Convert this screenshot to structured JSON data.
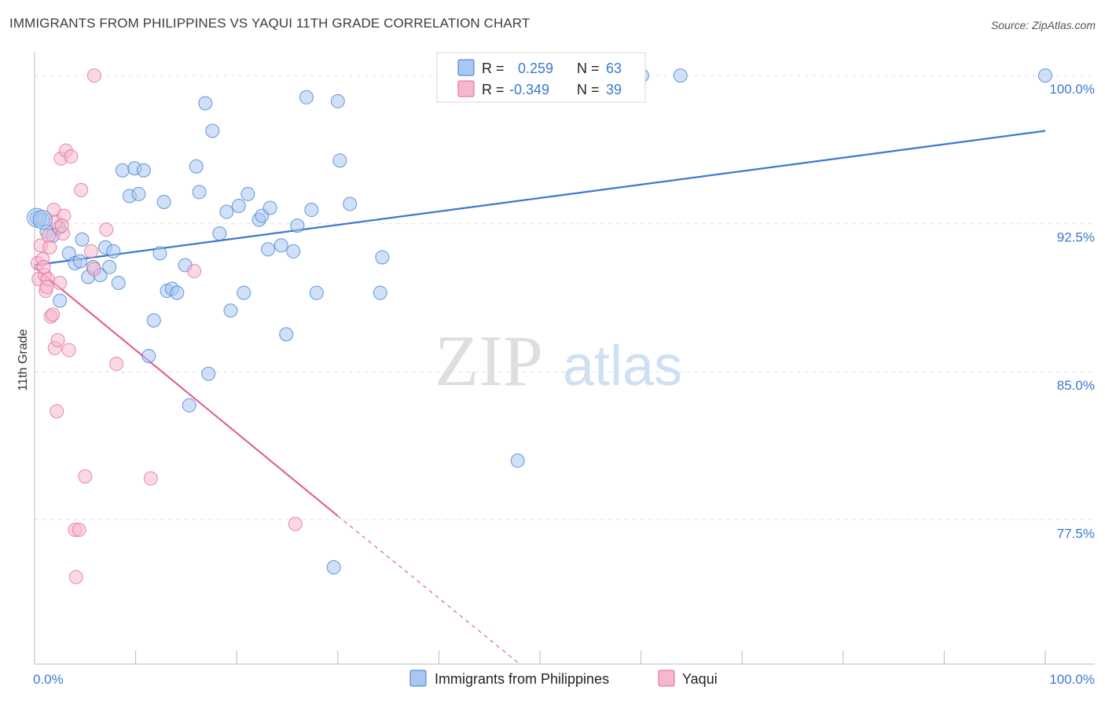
{
  "title": "IMMIGRANTS FROM PHILIPPINES VS YAQUI 11TH GRADE CORRELATION CHART",
  "source": "Source: ZipAtlas.com",
  "watermark": {
    "zip": "ZIP",
    "atlas": "atlas"
  },
  "colors": {
    "blue": "#3b78d1",
    "blue_fill": "#a9c7f0",
    "pink": "#e06592",
    "pink_fill": "#f5b8cd",
    "grid": "#e2e2e2"
  },
  "legend_top": {
    "rows": [
      {
        "r_label": "R =",
        "r_value": "0.259",
        "n_label": "N =",
        "n_value": "63"
      },
      {
        "r_label": "R =",
        "r_value": "-0.349",
        "n_label": "N =",
        "n_value": "39"
      }
    ]
  },
  "legend_bottom": [
    "Immigrants from Philippines",
    "Yaqui"
  ],
  "chart_data": {
    "type": "scatter",
    "title": "IMMIGRANTS FROM PHILIPPINES VS YAQUI 11TH GRADE CORRELATION CHART",
    "xlabel": "",
    "ylabel": "11th Grade",
    "xlim": [
      0,
      100
    ],
    "ylim": [
      70.2,
      101.2
    ],
    "x_tick_labels": [
      "0.0%",
      "100.0%"
    ],
    "y_ticks": [
      77.5,
      85.0,
      92.5,
      100.0
    ],
    "y_tick_labels": [
      "77.5%",
      "85.0%",
      "92.5%",
      "100.0%"
    ],
    "grid": true,
    "legend_position": "top-center",
    "series": [
      {
        "name": "Immigrants from Philippines",
        "color": "#3b78d1",
        "trend": {
          "x": [
            0,
            100
          ],
          "y": [
            90.4,
            97.2
          ]
        },
        "points": [
          {
            "x": 0.2,
            "y": 92.8
          },
          {
            "x": 0.8,
            "y": 92.7
          },
          {
            "x": 1.2,
            "y": 92.1
          },
          {
            "x": 1.8,
            "y": 91.9
          },
          {
            "x": 2.4,
            "y": 92.3
          },
          {
            "x": 2.5,
            "y": 88.6
          },
          {
            "x": 3.4,
            "y": 91.0
          },
          {
            "x": 4.0,
            "y": 90.5
          },
          {
            "x": 4.5,
            "y": 90.6
          },
          {
            "x": 4.7,
            "y": 91.7
          },
          {
            "x": 5.3,
            "y": 89.8
          },
          {
            "x": 5.8,
            "y": 90.3
          },
          {
            "x": 6.5,
            "y": 89.9
          },
          {
            "x": 7.0,
            "y": 91.3
          },
          {
            "x": 7.4,
            "y": 90.3
          },
          {
            "x": 7.8,
            "y": 91.1
          },
          {
            "x": 8.3,
            "y": 89.5
          },
          {
            "x": 8.7,
            "y": 95.2
          },
          {
            "x": 9.4,
            "y": 93.9
          },
          {
            "x": 9.9,
            "y": 95.3
          },
          {
            "x": 10.3,
            "y": 94.0
          },
          {
            "x": 10.8,
            "y": 95.2
          },
          {
            "x": 11.3,
            "y": 85.8
          },
          {
            "x": 11.8,
            "y": 87.6
          },
          {
            "x": 12.4,
            "y": 91.0
          },
          {
            "x": 12.8,
            "y": 93.6
          },
          {
            "x": 13.1,
            "y": 89.1
          },
          {
            "x": 13.6,
            "y": 89.2
          },
          {
            "x": 14.1,
            "y": 89.0
          },
          {
            "x": 14.9,
            "y": 90.4
          },
          {
            "x": 15.3,
            "y": 83.3
          },
          {
            "x": 16.0,
            "y": 95.4
          },
          {
            "x": 16.3,
            "y": 94.1
          },
          {
            "x": 16.9,
            "y": 98.6
          },
          {
            "x": 17.2,
            "y": 84.9
          },
          {
            "x": 17.6,
            "y": 97.2
          },
          {
            "x": 18.3,
            "y": 92.0
          },
          {
            "x": 19.0,
            "y": 93.1
          },
          {
            "x": 19.4,
            "y": 88.1
          },
          {
            "x": 20.2,
            "y": 93.4
          },
          {
            "x": 20.7,
            "y": 89.0
          },
          {
            "x": 21.1,
            "y": 94.0
          },
          {
            "x": 22.2,
            "y": 92.7
          },
          {
            "x": 22.5,
            "y": 92.9
          },
          {
            "x": 23.1,
            "y": 91.2
          },
          {
            "x": 23.3,
            "y": 93.3
          },
          {
            "x": 24.4,
            "y": 91.4
          },
          {
            "x": 24.9,
            "y": 86.9
          },
          {
            "x": 25.6,
            "y": 91.1
          },
          {
            "x": 26.0,
            "y": 92.4
          },
          {
            "x": 26.9,
            "y": 98.9
          },
          {
            "x": 27.4,
            "y": 93.2
          },
          {
            "x": 27.9,
            "y": 89.0
          },
          {
            "x": 29.6,
            "y": 75.1
          },
          {
            "x": 30.0,
            "y": 98.7
          },
          {
            "x": 30.2,
            "y": 95.7
          },
          {
            "x": 31.2,
            "y": 93.5
          },
          {
            "x": 34.2,
            "y": 89.0
          },
          {
            "x": 34.4,
            "y": 90.8
          },
          {
            "x": 47.8,
            "y": 80.5
          },
          {
            "x": 60.1,
            "y": 100.0
          },
          {
            "x": 63.9,
            "y": 100.0
          },
          {
            "x": 100.0,
            "y": 100.0
          }
        ]
      },
      {
        "name": "Yaqui",
        "color": "#e06592",
        "trend": {
          "x": [
            0,
            30
          ],
          "y": [
            90.3,
            77.7
          ]
        },
        "trend_dashed": {
          "x": [
            30,
            48
          ],
          "y": [
            77.7,
            70.2
          ]
        },
        "points": [
          {
            "x": 0.3,
            "y": 90.5
          },
          {
            "x": 0.4,
            "y": 89.7
          },
          {
            "x": 0.6,
            "y": 91.4
          },
          {
            "x": 0.8,
            "y": 90.7
          },
          {
            "x": 1.0,
            "y": 89.9
          },
          {
            "x": 1.1,
            "y": 89.1
          },
          {
            "x": 1.3,
            "y": 89.7
          },
          {
            "x": 1.4,
            "y": 91.9
          },
          {
            "x": 1.5,
            "y": 91.3
          },
          {
            "x": 1.6,
            "y": 87.8
          },
          {
            "x": 1.8,
            "y": 87.9
          },
          {
            "x": 1.9,
            "y": 93.2
          },
          {
            "x": 2.0,
            "y": 86.2
          },
          {
            "x": 2.1,
            "y": 92.6
          },
          {
            "x": 2.2,
            "y": 83.0
          },
          {
            "x": 2.3,
            "y": 86.6
          },
          {
            "x": 2.5,
            "y": 89.5
          },
          {
            "x": 2.6,
            "y": 95.8
          },
          {
            "x": 2.8,
            "y": 92.0
          },
          {
            "x": 2.9,
            "y": 92.9
          },
          {
            "x": 3.1,
            "y": 96.2
          },
          {
            "x": 3.4,
            "y": 86.1
          },
          {
            "x": 3.6,
            "y": 95.9
          },
          {
            "x": 4.0,
            "y": 77.0
          },
          {
            "x": 4.1,
            "y": 74.6
          },
          {
            "x": 4.4,
            "y": 77.0
          },
          {
            "x": 4.6,
            "y": 94.2
          },
          {
            "x": 5.0,
            "y": 79.7
          },
          {
            "x": 5.6,
            "y": 91.1
          },
          {
            "x": 5.9,
            "y": 90.2
          },
          {
            "x": 5.9,
            "y": 100.0
          },
          {
            "x": 7.1,
            "y": 92.2
          },
          {
            "x": 8.1,
            "y": 85.4
          },
          {
            "x": 11.5,
            "y": 79.6
          },
          {
            "x": 15.8,
            "y": 90.1
          },
          {
            "x": 25.8,
            "y": 77.3
          },
          {
            "x": 1.2,
            "y": 89.3
          },
          {
            "x": 0.9,
            "y": 90.3
          },
          {
            "x": 2.7,
            "y": 92.4
          }
        ]
      }
    ]
  }
}
